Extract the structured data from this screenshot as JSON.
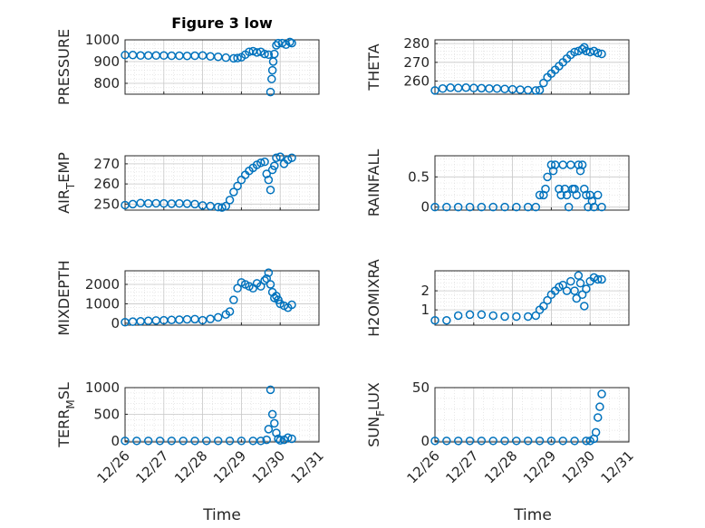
{
  "figure_title": "Figure 3 low",
  "colors": {
    "marker": "#0072bd",
    "grid": "#dcdcdc",
    "axes": "#262626"
  },
  "chart_data": [
    {
      "type": "scatter",
      "ylabel": "PRESSURE",
      "ylim": [
        750,
        1000
      ],
      "yticks": [
        800,
        900,
        1000
      ],
      "ytick_labels": [
        "800",
        "900",
        "1000"
      ],
      "xlim": [
        26,
        31
      ],
      "grid": true,
      "points": [
        [
          26.0,
          930
        ],
        [
          26.2,
          930
        ],
        [
          26.4,
          928
        ],
        [
          26.6,
          928
        ],
        [
          26.8,
          928
        ],
        [
          27.0,
          928
        ],
        [
          27.2,
          927
        ],
        [
          27.4,
          927
        ],
        [
          27.6,
          926
        ],
        [
          27.8,
          927
        ],
        [
          28.0,
          928
        ],
        [
          28.2,
          924
        ],
        [
          28.4,
          922
        ],
        [
          28.6,
          918
        ],
        [
          28.8,
          915
        ],
        [
          28.9,
          916
        ],
        [
          29.0,
          920
        ],
        [
          29.1,
          932
        ],
        [
          29.2,
          945
        ],
        [
          29.3,
          948
        ],
        [
          29.4,
          942
        ],
        [
          29.5,
          945
        ],
        [
          29.6,
          935
        ],
        [
          29.7,
          932
        ],
        [
          29.75,
          760
        ],
        [
          29.78,
          820
        ],
        [
          29.8,
          860
        ],
        [
          29.82,
          900
        ],
        [
          29.85,
          935
        ],
        [
          29.9,
          975
        ],
        [
          29.95,
          985
        ],
        [
          30.05,
          985
        ],
        [
          30.15,
          978
        ],
        [
          30.25,
          990
        ],
        [
          30.3,
          985
        ]
      ]
    },
    {
      "type": "scatter",
      "ylabel": "THETA",
      "ylim": [
        253,
        282
      ],
      "yticks": [
        260,
        270,
        280
      ],
      "ytick_labels": [
        "260",
        "270",
        "280"
      ],
      "xlim": [
        26,
        31
      ],
      "grid": true,
      "points": [
        [
          26.0,
          255
        ],
        [
          26.2,
          256
        ],
        [
          26.4,
          256.5
        ],
        [
          26.6,
          256.3
        ],
        [
          26.8,
          256.5
        ],
        [
          27.0,
          256.3
        ],
        [
          27.2,
          256.2
        ],
        [
          27.4,
          256
        ],
        [
          27.6,
          256
        ],
        [
          27.8,
          255.8
        ],
        [
          28.0,
          255.6
        ],
        [
          28.2,
          255.4
        ],
        [
          28.4,
          255.2
        ],
        [
          28.6,
          255
        ],
        [
          28.7,
          255.2
        ],
        [
          28.8,
          259
        ],
        [
          28.9,
          262
        ],
        [
          29.0,
          264
        ],
        [
          29.1,
          266
        ],
        [
          29.2,
          268
        ],
        [
          29.3,
          270
        ],
        [
          29.4,
          272
        ],
        [
          29.5,
          274
        ],
        [
          29.6,
          275.5
        ],
        [
          29.7,
          276
        ],
        [
          29.8,
          277
        ],
        [
          29.85,
          278
        ],
        [
          29.9,
          276
        ],
        [
          30.0,
          275.5
        ],
        [
          30.1,
          276
        ],
        [
          30.2,
          275
        ],
        [
          30.3,
          274.5
        ]
      ]
    },
    {
      "type": "scatter",
      "ylabel": "AIR_TEMP",
      "ylim": [
        247,
        274
      ],
      "yticks": [
        250,
        260,
        270
      ],
      "ytick_labels": [
        "250",
        "260",
        "270"
      ],
      "xlim": [
        26,
        31
      ],
      "grid": true,
      "points": [
        [
          26.0,
          249.5
        ],
        [
          26.2,
          250
        ],
        [
          26.4,
          250.5
        ],
        [
          26.6,
          250.3
        ],
        [
          26.8,
          250.4
        ],
        [
          27.0,
          250.3
        ],
        [
          27.2,
          250.2
        ],
        [
          27.4,
          250.3
        ],
        [
          27.6,
          250.2
        ],
        [
          27.8,
          250
        ],
        [
          28.0,
          249.3
        ],
        [
          28.2,
          249
        ],
        [
          28.4,
          248.5
        ],
        [
          28.5,
          248.3
        ],
        [
          28.6,
          249
        ],
        [
          28.7,
          252
        ],
        [
          28.8,
          256
        ],
        [
          28.9,
          259
        ],
        [
          29.0,
          262
        ],
        [
          29.1,
          264.5
        ],
        [
          29.2,
          266.5
        ],
        [
          29.3,
          268
        ],
        [
          29.4,
          269.5
        ],
        [
          29.5,
          270.5
        ],
        [
          29.6,
          271
        ],
        [
          29.65,
          265
        ],
        [
          29.7,
          262
        ],
        [
          29.75,
          257
        ],
        [
          29.8,
          267
        ],
        [
          29.85,
          269
        ],
        [
          29.9,
          273
        ],
        [
          30.0,
          273.5
        ],
        [
          30.1,
          270
        ],
        [
          30.2,
          272
        ],
        [
          30.3,
          273
        ]
      ]
    },
    {
      "type": "scatter",
      "ylabel": "RAINFALL",
      "ylim": [
        -0.05,
        0.85
      ],
      "yticks": [
        0,
        0.5
      ],
      "ytick_labels": [
        "0",
        "0.5"
      ],
      "xlim": [
        26,
        31
      ],
      "grid": true,
      "points": [
        [
          26.0,
          0
        ],
        [
          26.3,
          0
        ],
        [
          26.6,
          0
        ],
        [
          26.9,
          0
        ],
        [
          27.2,
          0
        ],
        [
          27.5,
          0
        ],
        [
          27.8,
          0
        ],
        [
          28.1,
          0
        ],
        [
          28.4,
          0
        ],
        [
          28.6,
          0
        ],
        [
          28.7,
          0.2
        ],
        [
          28.8,
          0.2
        ],
        [
          28.85,
          0.3
        ],
        [
          28.9,
          0.5
        ],
        [
          29.0,
          0.7
        ],
        [
          29.05,
          0.6
        ],
        [
          29.1,
          0.7
        ],
        [
          29.2,
          0.3
        ],
        [
          29.25,
          0.2
        ],
        [
          29.3,
          0.7
        ],
        [
          29.35,
          0.3
        ],
        [
          29.4,
          0.2
        ],
        [
          29.45,
          0
        ],
        [
          29.5,
          0.7
        ],
        [
          29.55,
          0.3
        ],
        [
          29.6,
          0.3
        ],
        [
          29.65,
          0.2
        ],
        [
          29.7,
          0.7
        ],
        [
          29.75,
          0.6
        ],
        [
          29.8,
          0.7
        ],
        [
          29.85,
          0.3
        ],
        [
          29.9,
          0.2
        ],
        [
          29.95,
          0
        ],
        [
          30.0,
          0.2
        ],
        [
          30.05,
          0.1
        ],
        [
          30.1,
          0
        ],
        [
          30.2,
          0.2
        ],
        [
          30.3,
          0
        ]
      ]
    },
    {
      "type": "scatter",
      "ylabel": "MIXDEPTH",
      "ylim": [
        -100,
        2700
      ],
      "yticks": [
        0,
        1000,
        2000
      ],
      "ytick_labels": [
        "0",
        "1000",
        "2000"
      ],
      "xlim": [
        26,
        31
      ],
      "grid": true,
      "points": [
        [
          26.0,
          50
        ],
        [
          26.2,
          80
        ],
        [
          26.4,
          100
        ],
        [
          26.6,
          120
        ],
        [
          26.8,
          140
        ],
        [
          27.0,
          150
        ],
        [
          27.2,
          170
        ],
        [
          27.4,
          180
        ],
        [
          27.6,
          200
        ],
        [
          27.8,
          210
        ],
        [
          28.0,
          150
        ],
        [
          28.2,
          220
        ],
        [
          28.4,
          300
        ],
        [
          28.6,
          450
        ],
        [
          28.7,
          600
        ],
        [
          28.8,
          1200
        ],
        [
          28.9,
          1800
        ],
        [
          29.0,
          2100
        ],
        [
          29.1,
          2000
        ],
        [
          29.2,
          1900
        ],
        [
          29.3,
          1800
        ],
        [
          29.4,
          2050
        ],
        [
          29.5,
          1900
        ],
        [
          29.6,
          2200
        ],
        [
          29.65,
          2300
        ],
        [
          29.7,
          2600
        ],
        [
          29.75,
          2000
        ],
        [
          29.8,
          1600
        ],
        [
          29.85,
          1300
        ],
        [
          29.9,
          1400
        ],
        [
          29.95,
          1200
        ],
        [
          30.0,
          1000
        ],
        [
          30.1,
          900
        ],
        [
          30.2,
          800
        ],
        [
          30.3,
          950
        ]
      ]
    },
    {
      "type": "scatter",
      "ylabel": "H2OMIXRA",
      "ylim": [
        0.2,
        3.05
      ],
      "yticks": [
        1,
        2
      ],
      "ytick_labels": [
        "1",
        "2"
      ],
      "xlim": [
        26,
        31
      ],
      "grid": true,
      "points": [
        [
          26.0,
          0.45
        ],
        [
          26.3,
          0.45
        ],
        [
          26.6,
          0.7
        ],
        [
          26.9,
          0.75
        ],
        [
          27.2,
          0.75
        ],
        [
          27.5,
          0.7
        ],
        [
          27.8,
          0.65
        ],
        [
          28.1,
          0.65
        ],
        [
          28.4,
          0.65
        ],
        [
          28.6,
          0.7
        ],
        [
          28.7,
          1.0
        ],
        [
          28.8,
          1.2
        ],
        [
          28.9,
          1.5
        ],
        [
          29.0,
          1.8
        ],
        [
          29.1,
          2.0
        ],
        [
          29.2,
          2.2
        ],
        [
          29.3,
          2.3
        ],
        [
          29.4,
          2.0
        ],
        [
          29.5,
          2.5
        ],
        [
          29.6,
          2.0
        ],
        [
          29.65,
          1.6
        ],
        [
          29.7,
          2.8
        ],
        [
          29.75,
          2.4
        ],
        [
          29.8,
          1.8
        ],
        [
          29.85,
          1.2
        ],
        [
          29.9,
          2.1
        ],
        [
          30.0,
          2.5
        ],
        [
          30.1,
          2.7
        ],
        [
          30.2,
          2.6
        ],
        [
          30.3,
          2.6
        ]
      ]
    },
    {
      "type": "scatter",
      "ylabel": "TERR_MSL",
      "ylim": [
        -20,
        1000
      ],
      "yticks": [
        0,
        500,
        1000
      ],
      "ytick_labels": [
        "0",
        "500",
        "1000"
      ],
      "xlim": [
        26,
        31
      ],
      "grid": true,
      "points": [
        [
          26.0,
          0
        ],
        [
          26.3,
          0
        ],
        [
          26.6,
          0
        ],
        [
          26.9,
          0
        ],
        [
          27.2,
          0
        ],
        [
          27.5,
          0
        ],
        [
          27.8,
          0
        ],
        [
          28.1,
          0
        ],
        [
          28.4,
          0
        ],
        [
          28.7,
          0
        ],
        [
          29.0,
          0
        ],
        [
          29.3,
          0
        ],
        [
          29.5,
          0
        ],
        [
          29.65,
          20
        ],
        [
          29.7,
          220
        ],
        [
          29.75,
          960
        ],
        [
          29.8,
          500
        ],
        [
          29.85,
          330
        ],
        [
          29.9,
          150
        ],
        [
          29.95,
          40
        ],
        [
          30.0,
          10
        ],
        [
          30.1,
          20
        ],
        [
          30.2,
          60
        ],
        [
          30.3,
          40
        ]
      ]
    },
    {
      "type": "scatter",
      "ylabel": "SUN_FLUX",
      "ylim": [
        -1,
        50
      ],
      "yticks": [
        0,
        50
      ],
      "ytick_labels": [
        "0",
        "50"
      ],
      "xlim": [
        26,
        31
      ],
      "grid": true,
      "points": [
        [
          26.0,
          0
        ],
        [
          26.3,
          0
        ],
        [
          26.6,
          0
        ],
        [
          26.9,
          0
        ],
        [
          27.2,
          0
        ],
        [
          27.5,
          0
        ],
        [
          27.8,
          0
        ],
        [
          28.1,
          0
        ],
        [
          28.4,
          0
        ],
        [
          28.7,
          0
        ],
        [
          29.0,
          0
        ],
        [
          29.3,
          0
        ],
        [
          29.6,
          0
        ],
        [
          29.9,
          0
        ],
        [
          30.0,
          0
        ],
        [
          30.1,
          2
        ],
        [
          30.15,
          8
        ],
        [
          30.2,
          22
        ],
        [
          30.25,
          32
        ],
        [
          30.3,
          44
        ]
      ]
    }
  ],
  "xticks": [
    26,
    27,
    28,
    29,
    30,
    31
  ],
  "xtick_labels": [
    "12/26",
    "12/27",
    "12/28",
    "12/29",
    "12/30",
    "12/31"
  ],
  "xlabel": "Time"
}
